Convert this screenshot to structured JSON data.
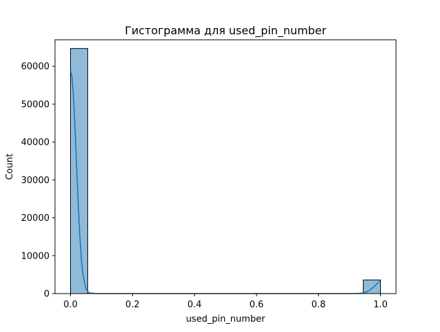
{
  "chart_data": {
    "type": "bar",
    "title": "Гистограмма для used_pin_number",
    "xlabel": "used_pin_number",
    "ylabel": "Count",
    "xlim": [
      -0.05,
      1.05
    ],
    "ylim": [
      0,
      67000
    ],
    "xticks": [
      0.0,
      0.2,
      0.4,
      0.6,
      0.8,
      1.0
    ],
    "xtick_labels": [
      "0.0",
      "0.2",
      "0.4",
      "0.6",
      "0.8",
      "1.0"
    ],
    "yticks": [
      0,
      10000,
      20000,
      30000,
      40000,
      50000,
      60000
    ],
    "ytick_labels": [
      "0",
      "10000",
      "20000",
      "30000",
      "40000",
      "50000",
      "60000"
    ],
    "grid": false,
    "bins": [
      {
        "x0": 0.0,
        "x1": 0.0556,
        "count": 64700
      },
      {
        "x0": 0.9444,
        "x1": 1.0,
        "count": 3600
      }
    ],
    "kde": {
      "x": [
        0.0,
        0.005,
        0.01,
        0.015,
        0.02,
        0.025,
        0.03,
        0.035,
        0.04,
        0.05,
        0.06,
        0.08,
        0.1,
        0.2,
        0.4,
        0.6,
        0.8,
        0.9,
        0.92,
        0.94,
        0.95,
        0.96,
        0.97,
        0.98,
        0.99,
        1.0
      ],
      "y": [
        59100,
        57000,
        51500,
        43000,
        33000,
        23500,
        15300,
        9100,
        5000,
        1200,
        200,
        10,
        0,
        0,
        0,
        0,
        0,
        0,
        20,
        100,
        300,
        650,
        1200,
        1900,
        2700,
        3500
      ]
    },
    "colors": {
      "bar_fill": "#1f77b4",
      "bar_fill_opacity": 0.5,
      "bar_edge": "#000000",
      "kde_line": "#1f77b4"
    }
  }
}
